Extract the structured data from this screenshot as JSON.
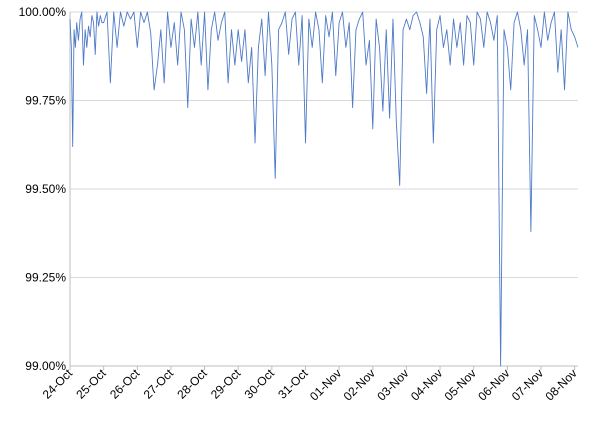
{
  "chart_data": {
    "type": "line",
    "title": "",
    "xlabel": "",
    "ylabel": "",
    "ylim": [
      99.0,
      100.0
    ],
    "yticks": [
      "99.00%",
      "99.25%",
      "99.50%",
      "99.75%",
      "100.00%"
    ],
    "ytick_values": [
      99.0,
      99.25,
      99.5,
      99.75,
      100.0
    ],
    "xlim": [
      0,
      15.1
    ],
    "categories": [
      "24-Oct",
      "25-Oct",
      "26-Oct",
      "27-Oct",
      "28-Oct",
      "29-Oct",
      "30-Oct",
      "31-Oct",
      "01-Nov",
      "02-Nov",
      "03-Nov",
      "04-Nov",
      "05-Nov",
      "06-Nov",
      "07-Nov",
      "08-Nov"
    ],
    "grid": true,
    "legend": "none",
    "line_color": "#4f7ac7",
    "series": [
      {
        "x": [
          0.0,
          0.04,
          0.08,
          0.12,
          0.16,
          0.2,
          0.25,
          0.3,
          0.35,
          0.4,
          0.45,
          0.5,
          0.55,
          0.6,
          0.65,
          0.7,
          0.75,
          0.8,
          0.85,
          0.9,
          0.95,
          1.0,
          1.1,
          1.2,
          1.3,
          1.4,
          1.5,
          1.6,
          1.7,
          1.8,
          1.9,
          2.0,
          2.1,
          2.2,
          2.3,
          2.4,
          2.5,
          2.6,
          2.7,
          2.8,
          2.9,
          3.0,
          3.1,
          3.2,
          3.3,
          3.4,
          3.5,
          3.6,
          3.7,
          3.8,
          3.9,
          4.0,
          4.1,
          4.2,
          4.3,
          4.4,
          4.5,
          4.6,
          4.7,
          4.8,
          4.9,
          5.0,
          5.1,
          5.2,
          5.3,
          5.4,
          5.5,
          5.6,
          5.7,
          5.8,
          5.9,
          6.0,
          6.1,
          6.2,
          6.3,
          6.4,
          6.5,
          6.6,
          6.7,
          6.8,
          6.9,
          7.0,
          7.1,
          7.2,
          7.3,
          7.4,
          7.5,
          7.6,
          7.7,
          7.8,
          7.9,
          8.0,
          8.1,
          8.2,
          8.3,
          8.4,
          8.5,
          8.6,
          8.7,
          8.8,
          8.9,
          9.0,
          9.1,
          9.2,
          9.3,
          9.4,
          9.5,
          9.6,
          9.7,
          9.8,
          9.9,
          10.0,
          10.1,
          10.2,
          10.3,
          10.4,
          10.5,
          10.6,
          10.7,
          10.8,
          10.9,
          11.0,
          11.1,
          11.2,
          11.3,
          11.4,
          11.5,
          11.6,
          11.7,
          11.8,
          11.9,
          12.0,
          12.1,
          12.2,
          12.3,
          12.4,
          12.5,
          12.6,
          12.7,
          12.8,
          12.9,
          13.0,
          13.1,
          13.2,
          13.3,
          13.4,
          13.5,
          13.6,
          13.7,
          13.8,
          13.9,
          14.0,
          14.1,
          14.2,
          14.3,
          14.4,
          14.5,
          14.6,
          14.7,
          14.8,
          14.9,
          15.0,
          15.1
        ],
        "values": [
          99.98,
          99.9,
          99.62,
          99.95,
          99.9,
          99.97,
          99.92,
          99.98,
          100.0,
          99.85,
          99.95,
          99.9,
          99.96,
          99.93,
          99.99,
          99.97,
          99.88,
          100.0,
          99.96,
          99.99,
          99.97,
          99.97,
          100.0,
          99.8,
          100.0,
          99.9,
          100.0,
          99.96,
          100.0,
          99.98,
          100.0,
          99.9,
          100.0,
          99.97,
          100.0,
          99.94,
          99.78,
          99.85,
          99.95,
          99.8,
          100.0,
          99.9,
          99.97,
          99.85,
          100.0,
          99.95,
          99.73,
          99.98,
          99.9,
          100.0,
          99.85,
          100.0,
          99.78,
          99.95,
          100.0,
          99.92,
          99.97,
          100.0,
          99.8,
          99.95,
          99.85,
          99.95,
          99.86,
          99.95,
          99.8,
          99.9,
          99.63,
          99.9,
          99.98,
          99.82,
          100.0,
          99.85,
          99.53,
          99.95,
          99.97,
          100.0,
          99.88,
          99.98,
          100.0,
          99.85,
          99.99,
          99.63,
          99.98,
          99.9,
          100.0,
          99.95,
          99.8,
          99.99,
          99.93,
          100.0,
          99.82,
          99.97,
          100.0,
          99.9,
          99.97,
          99.73,
          99.95,
          99.98,
          100.0,
          99.85,
          99.92,
          99.67,
          99.98,
          99.9,
          99.72,
          99.95,
          99.7,
          99.98,
          99.69,
          99.51,
          99.95,
          99.98,
          99.95,
          99.99,
          100.0,
          99.97,
          99.93,
          99.77,
          99.98,
          99.63,
          99.95,
          99.99,
          99.9,
          99.95,
          99.85,
          99.98,
          99.9,
          99.97,
          99.85,
          99.99,
          99.97,
          99.85,
          100.0,
          99.98,
          99.9,
          100.0,
          99.97,
          99.92,
          99.99,
          99.0,
          99.95,
          99.9,
          99.78,
          99.97,
          100.0,
          99.95,
          99.85,
          99.95,
          99.38,
          99.99,
          99.95,
          99.9,
          100.0,
          99.92,
          99.97,
          100.0,
          99.83,
          99.95,
          99.78,
          100.0,
          99.95,
          99.93,
          99.9
        ]
      }
    ]
  }
}
